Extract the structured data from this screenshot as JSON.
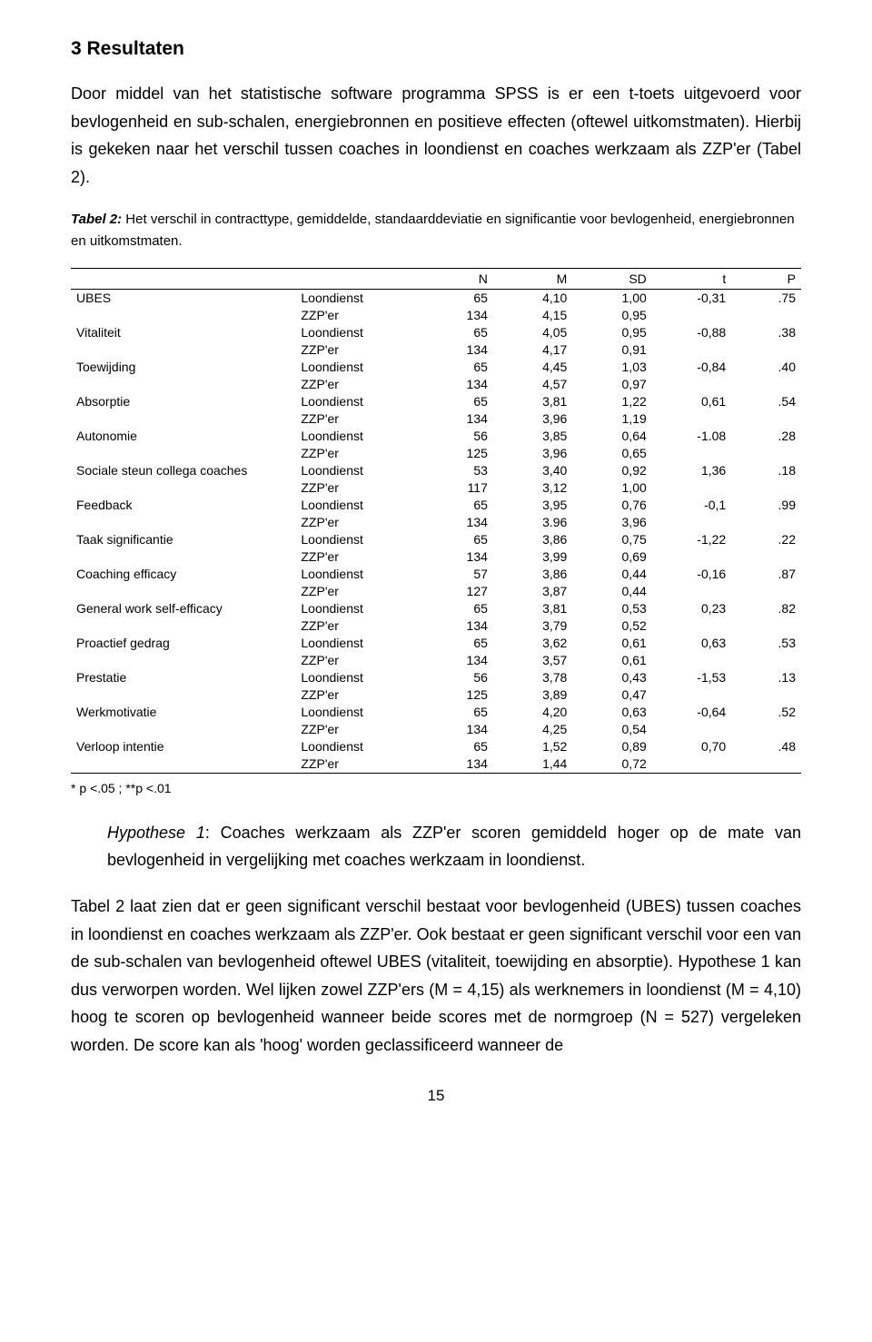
{
  "section_title": "3 Resultaten",
  "intro_para": "Door middel van het statistische software programma SPSS is er een t-toets uitgevoerd voor bevlogenheid en sub-schalen, energiebronnen en positieve effecten (oftewel uitkomstmaten). Hierbij is gekeken naar het verschil tussen coaches in loondienst en coaches werkzaam als ZZP'er (Tabel 2).",
  "caption_bold": "Tabel 2:",
  "caption_rest": " Het verschil in contracttype, gemiddelde, standaarddeviatie en significantie voor bevlogenheid, energiebronnen en uitkomstmaten.",
  "headers": {
    "n": "N",
    "m": "M",
    "sd": "SD",
    "t": "t",
    "p": "P"
  },
  "groups": {
    "loon": "Loondienst",
    "zzp": "ZZP'er"
  },
  "rows": [
    {
      "label": "UBES",
      "indent": false,
      "loon": {
        "n": "65",
        "m": "4,10",
        "sd": "1,00"
      },
      "t": "-0,31",
      "p": ".75",
      "zzp": {
        "n": "134",
        "m": "4,15",
        "sd": "0,95"
      }
    },
    {
      "label": "Vitaliteit",
      "indent": true,
      "loon": {
        "n": "65",
        "m": "4,05",
        "sd": "0,95"
      },
      "t": "-0,88",
      "p": ".38",
      "zzp": {
        "n": "134",
        "m": "4,17",
        "sd": "0,91"
      }
    },
    {
      "label": "Toewijding",
      "indent": true,
      "loon": {
        "n": "65",
        "m": "4,45",
        "sd": "1,03"
      },
      "t": "-0,84",
      "p": ".40",
      "zzp": {
        "n": "134",
        "m": "4,57",
        "sd": "0,97"
      }
    },
    {
      "label": "Absorptie",
      "indent": true,
      "loon": {
        "n": "65",
        "m": "3,81",
        "sd": "1,22"
      },
      "t": "0,61",
      "p": ".54",
      "zzp": {
        "n": "134",
        "m": "3,96",
        "sd": "1,19"
      }
    },
    {
      "label": "Autonomie",
      "indent": false,
      "loon": {
        "n": "56",
        "m": "3,85",
        "sd": "0,64"
      },
      "t": "-1.08",
      "p": ".28",
      "zzp": {
        "n": "125",
        "m": "3,96",
        "sd": "0,65"
      }
    },
    {
      "label": "Sociale steun collega coaches",
      "indent": false,
      "loon": {
        "n": "53",
        "m": "3,40",
        "sd": "0,92"
      },
      "t": "1,36",
      "p": ".18",
      "zzp": {
        "n": "117",
        "m": "3,12",
        "sd": "1,00"
      }
    },
    {
      "label": "Feedback",
      "indent": false,
      "loon": {
        "n": "65",
        "m": "3,95",
        "sd": "0,76"
      },
      "t": "-0,1",
      "p": ".99",
      "zzp": {
        "n": "134",
        "m": "3.96",
        "sd": "3,96"
      }
    },
    {
      "label": "Taak significantie",
      "indent": false,
      "loon": {
        "n": "65",
        "m": "3,86",
        "sd": "0,75"
      },
      "t": "-1,22",
      "p": ".22",
      "zzp": {
        "n": "134",
        "m": "3,99",
        "sd": "0,69"
      }
    },
    {
      "label": "Coaching efficacy",
      "indent": false,
      "loon": {
        "n": "57",
        "m": "3,86",
        "sd": "0,44"
      },
      "t": "-0,16",
      "p": ".87",
      "zzp": {
        "n": "127",
        "m": "3,87",
        "sd": "0,44"
      }
    },
    {
      "label": "General work self-efficacy",
      "indent": false,
      "loon": {
        "n": "65",
        "m": "3,81",
        "sd": "0,53"
      },
      "t": "0,23",
      "p": ".82",
      "zzp": {
        "n": "134",
        "m": "3,79",
        "sd": "0,52"
      }
    },
    {
      "label": "Proactief gedrag",
      "indent": false,
      "loon": {
        "n": "65",
        "m": "3,62",
        "sd": "0,61"
      },
      "t": "0,63",
      "p": ".53",
      "zzp": {
        "n": "134",
        "m": "3,57",
        "sd": "0,61"
      }
    },
    {
      "label": "Prestatie",
      "indent": false,
      "loon": {
        "n": "56",
        "m": "3,78",
        "sd": "0,43"
      },
      "t": "-1,53",
      "p": ".13",
      "zzp": {
        "n": "125",
        "m": "3,89",
        "sd": "0,47"
      }
    },
    {
      "label": "Werkmotivatie",
      "indent": false,
      "loon": {
        "n": "65",
        "m": "4,20",
        "sd": "0,63"
      },
      "t": "-0,64",
      "p": ".52",
      "zzp": {
        "n": "134",
        "m": "4,25",
        "sd": "0,54"
      }
    },
    {
      "label": "Verloop intentie",
      "indent": false,
      "loon": {
        "n": "65",
        "m": "1,52",
        "sd": "0,89"
      },
      "t": "0,70",
      "p": ".48",
      "zzp": {
        "n": "134",
        "m": "1,44",
        "sd": "0,72"
      }
    }
  ],
  "footnote": "* p <.05 ; **p <.01",
  "hyp_lead": "Hypothese 1",
  "hyp_rest": ": Coaches werkzaam als ZZP'er scoren gemiddeld hoger op de mate van bevlogenheid in vergelijking met coaches werkzaam in loondienst.",
  "closing_para": "Tabel 2 laat zien dat er geen significant verschil bestaat voor bevlogenheid (UBES) tussen coaches in loondienst en coaches werkzaam als ZZP'er. Ook bestaat er geen significant verschil voor een van de sub-schalen van bevlogenheid oftewel UBES (vitaliteit, toewijding en absorptie). Hypothese 1 kan dus verworpen worden. Wel lijken zowel ZZP'ers (M = 4,15) als werknemers in loondienst (M = 4,10) hoog te scoren op bevlogenheid wanneer beide scores met de normgroep (N = 527) vergeleken worden. De score kan als 'hoog' worden geclassificeerd wanneer de",
  "page_number": "15"
}
